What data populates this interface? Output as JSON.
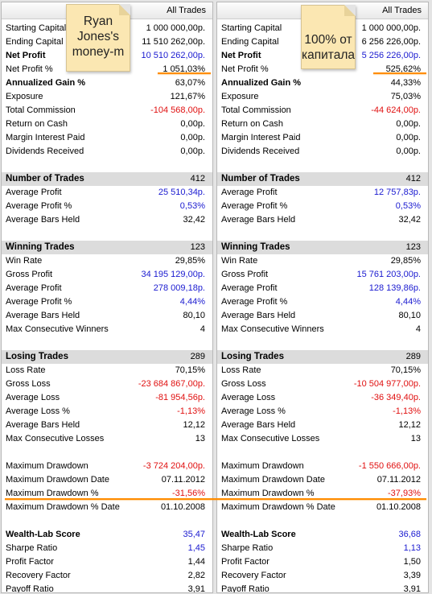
{
  "colors": {
    "negative": "#e01010",
    "positive": "#1a1ad0",
    "section_bg": "#dcdcdc",
    "highlight": "#ff8c00",
    "note_bg": "#fbe7b2"
  },
  "panels": [
    {
      "header": "All Trades",
      "note": [
        "Ryan",
        "Jones's",
        "money-m"
      ],
      "rows": [
        {
          "label": "Starting Capital",
          "value": "1 000 000,00р.",
          "tone": ""
        },
        {
          "label": "Ending Capital",
          "value": "11 510 262,00р.",
          "tone": ""
        },
        {
          "label": "Net Profit",
          "value": "10 510 262,00р.",
          "tone": "pos",
          "bold": true
        },
        {
          "label": "Net Profit %",
          "value": "1 051,03%",
          "tone": ""
        },
        {
          "label": "Annualized Gain %",
          "value": "63,07%",
          "tone": "",
          "bold": true
        },
        {
          "label": "Exposure",
          "value": "121,67%",
          "tone": ""
        },
        {
          "label": "Total Commission",
          "value": "-104 568,00р.",
          "tone": "neg"
        },
        {
          "label": "Return on Cash",
          "value": "0,00р.",
          "tone": ""
        },
        {
          "label": "Margin Interest Paid",
          "value": "0,00р.",
          "tone": ""
        },
        {
          "label": "Dividends Received",
          "value": "0,00р.",
          "tone": ""
        },
        {
          "label": "",
          "value": "",
          "tone": "",
          "blank": true
        },
        {
          "label": "Number of Trades",
          "value": "412",
          "tone": "",
          "section": true
        },
        {
          "label": "Average Profit",
          "value": "25 510,34р.",
          "tone": "pos"
        },
        {
          "label": "Average Profit %",
          "value": "0,53%",
          "tone": "pos"
        },
        {
          "label": "Average Bars Held",
          "value": "32,42",
          "tone": ""
        },
        {
          "label": "",
          "value": "",
          "tone": "",
          "blank": true
        },
        {
          "label": "Winning Trades",
          "value": "123",
          "tone": "",
          "section": true
        },
        {
          "label": "Win Rate",
          "value": "29,85%",
          "tone": ""
        },
        {
          "label": "Gross Profit",
          "value": "34 195 129,00р.",
          "tone": "pos"
        },
        {
          "label": "Average Profit",
          "value": "278 009,18р.",
          "tone": "pos"
        },
        {
          "label": "Average Profit %",
          "value": "4,44%",
          "tone": "pos"
        },
        {
          "label": "Average Bars Held",
          "value": "80,10",
          "tone": ""
        },
        {
          "label": "Max Consecutive Winners",
          "value": "4",
          "tone": ""
        },
        {
          "label": "",
          "value": "",
          "tone": "",
          "blank": true
        },
        {
          "label": "Losing Trades",
          "value": "289",
          "tone": "",
          "section": true
        },
        {
          "label": "Loss Rate",
          "value": "70,15%",
          "tone": ""
        },
        {
          "label": "Gross Loss",
          "value": "-23 684 867,00р.",
          "tone": "neg"
        },
        {
          "label": "Average Loss",
          "value": "-81 954,56р.",
          "tone": "neg"
        },
        {
          "label": "Average Loss %",
          "value": "-1,13%",
          "tone": "neg"
        },
        {
          "label": "Average Bars Held",
          "value": "12,12",
          "tone": ""
        },
        {
          "label": "Max Consecutive Losses",
          "value": "13",
          "tone": ""
        },
        {
          "label": "",
          "value": "",
          "tone": "",
          "blank": true
        },
        {
          "label": "Maximum Drawdown",
          "value": "-3 724 204,00р.",
          "tone": "neg"
        },
        {
          "label": "Maximum Drawdown Date",
          "value": "07.11.2012",
          "tone": ""
        },
        {
          "label": "Maximum Drawdown %",
          "value": "-31,56%",
          "tone": "neg"
        },
        {
          "label": "Maximum Drawdown % Date",
          "value": "01.10.2008",
          "tone": ""
        },
        {
          "label": "",
          "value": "",
          "tone": "",
          "blank": true
        },
        {
          "label": "Wealth-Lab Score",
          "value": "35,47",
          "tone": "pos",
          "bold": true
        },
        {
          "label": "Sharpe Ratio",
          "value": "1,45",
          "tone": "pos"
        },
        {
          "label": "Profit Factor",
          "value": "1,44",
          "tone": ""
        },
        {
          "label": "Recovery Factor",
          "value": "2,82",
          "tone": ""
        },
        {
          "label": "Payoff Ratio",
          "value": "3,91",
          "tone": ""
        }
      ]
    },
    {
      "header": "All Trades",
      "note": [
        "100% от",
        "капитала"
      ],
      "rows": [
        {
          "label": "Starting Capital",
          "value": "1 000 000,00р.",
          "tone": ""
        },
        {
          "label": "Ending Capital",
          "value": "6 256 226,00р.",
          "tone": ""
        },
        {
          "label": "Net Profit",
          "value": "5 256 226,00р.",
          "tone": "pos",
          "bold": true
        },
        {
          "label": "Net Profit %",
          "value": "525,62%",
          "tone": ""
        },
        {
          "label": "Annualized Gain %",
          "value": "44,33%",
          "tone": "",
          "bold": true
        },
        {
          "label": "Exposure",
          "value": "75,03%",
          "tone": ""
        },
        {
          "label": "Total Commission",
          "value": "-44 624,00р.",
          "tone": "neg"
        },
        {
          "label": "Return on Cash",
          "value": "0,00р.",
          "tone": ""
        },
        {
          "label": "Margin Interest Paid",
          "value": "0,00р.",
          "tone": ""
        },
        {
          "label": "Dividends Received",
          "value": "0,00р.",
          "tone": ""
        },
        {
          "label": "",
          "value": "",
          "tone": "",
          "blank": true
        },
        {
          "label": "Number of Trades",
          "value": "412",
          "tone": "",
          "section": true
        },
        {
          "label": "Average Profit",
          "value": "12 757,83р.",
          "tone": "pos"
        },
        {
          "label": "Average Profit %",
          "value": "0,53%",
          "tone": "pos"
        },
        {
          "label": "Average Bars Held",
          "value": "32,42",
          "tone": ""
        },
        {
          "label": "",
          "value": "",
          "tone": "",
          "blank": true
        },
        {
          "label": "Winning Trades",
          "value": "123",
          "tone": "",
          "section": true
        },
        {
          "label": "Win Rate",
          "value": "29,85%",
          "tone": ""
        },
        {
          "label": "Gross Profit",
          "value": "15 761 203,00р.",
          "tone": "pos"
        },
        {
          "label": "Average Profit",
          "value": "128 139,86р.",
          "tone": "pos"
        },
        {
          "label": "Average Profit %",
          "value": "4,44%",
          "tone": "pos"
        },
        {
          "label": "Average Bars Held",
          "value": "80,10",
          "tone": ""
        },
        {
          "label": "Max Consecutive Winners",
          "value": "4",
          "tone": ""
        },
        {
          "label": "",
          "value": "",
          "tone": "",
          "blank": true
        },
        {
          "label": "Losing Trades",
          "value": "289",
          "tone": "",
          "section": true
        },
        {
          "label": "Loss Rate",
          "value": "70,15%",
          "tone": ""
        },
        {
          "label": "Gross Loss",
          "value": "-10 504 977,00р.",
          "tone": "neg"
        },
        {
          "label": "Average Loss",
          "value": "-36 349,40р.",
          "tone": "neg"
        },
        {
          "label": "Average Loss %",
          "value": "-1,13%",
          "tone": "neg"
        },
        {
          "label": "Average Bars Held",
          "value": "12,12",
          "tone": ""
        },
        {
          "label": "Max Consecutive Losses",
          "value": "13",
          "tone": ""
        },
        {
          "label": "",
          "value": "",
          "tone": "",
          "blank": true
        },
        {
          "label": "Maximum Drawdown",
          "value": "-1 550 666,00р.",
          "tone": "neg"
        },
        {
          "label": "Maximum Drawdown Date",
          "value": "07.11.2012",
          "tone": ""
        },
        {
          "label": "Maximum Drawdown %",
          "value": "-37,93%",
          "tone": "neg"
        },
        {
          "label": "Maximum Drawdown % Date",
          "value": "01.10.2008",
          "tone": ""
        },
        {
          "label": "",
          "value": "",
          "tone": "",
          "blank": true
        },
        {
          "label": "Wealth-Lab Score",
          "value": "36,68",
          "tone": "pos",
          "bold": true
        },
        {
          "label": "Sharpe Ratio",
          "value": "1,13",
          "tone": "pos"
        },
        {
          "label": "Profit Factor",
          "value": "1,50",
          "tone": ""
        },
        {
          "label": "Recovery Factor",
          "value": "3,39",
          "tone": ""
        },
        {
          "label": "Payoff Ratio",
          "value": "3,91",
          "tone": ""
        }
      ]
    }
  ]
}
